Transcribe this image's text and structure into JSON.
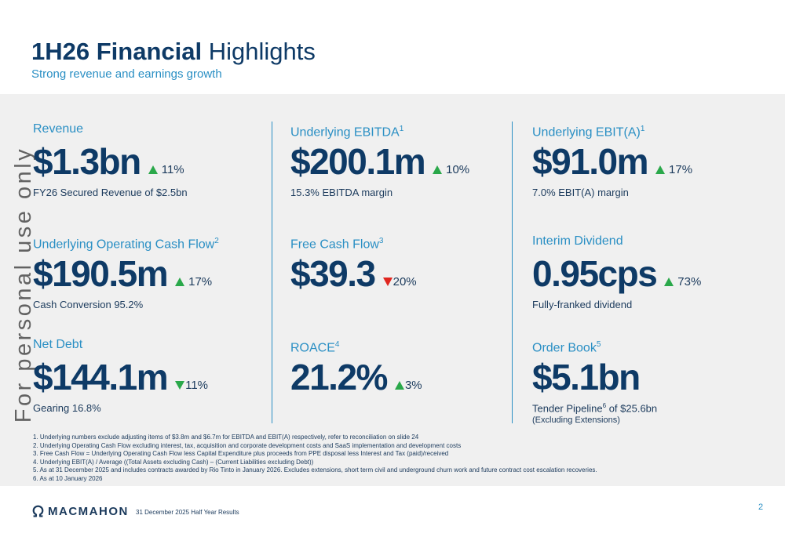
{
  "header": {
    "title_bold": "1H26 Financial",
    "title_light": "Highlights",
    "subtitle": "Strong revenue and earnings growth"
  },
  "watermark": "For personal use only",
  "metrics": [
    {
      "label": "Revenue",
      "sup": "",
      "value": "$1.3bn",
      "change": "11%",
      "direction": "up",
      "note": "FY26 Secured Revenue of $2.5bn"
    },
    {
      "label": "Underlying EBITDA",
      "sup": "1",
      "value": "$200.1m",
      "change": "10%",
      "direction": "up",
      "note": "15.3% EBITDA margin"
    },
    {
      "label": "Underlying EBIT(A)",
      "sup": "1",
      "value": "$91.0m",
      "change": "17%",
      "direction": "up",
      "note": "7.0% EBIT(A) margin"
    },
    {
      "label": "Underlying Operating Cash Flow",
      "sup": "2",
      "value": "$190.5m",
      "change": "17%",
      "direction": "up",
      "note": "Cash Conversion 95.2%"
    },
    {
      "label": "Free Cash Flow",
      "sup": "3",
      "value": "$39.3",
      "change": "20%",
      "direction": "down",
      "note": ""
    },
    {
      "label": "Interim Dividend",
      "sup": "",
      "value": "0.95cps",
      "change": "73%",
      "direction": "up",
      "note": "Fully-franked dividend"
    },
    {
      "label": "Net Debt",
      "sup": "",
      "value": "$144.1m",
      "change": "11%",
      "direction": "down-green",
      "note": "Gearing 16.8%"
    },
    {
      "label": "ROACE",
      "sup": "4",
      "value": "21.2%",
      "change": "3%",
      "direction": "up",
      "note": ""
    },
    {
      "label": "Order Book",
      "sup": "5",
      "value": "$5.1bn",
      "change": "",
      "direction": "",
      "note_pre": "Tender Pipeline",
      "note_sup": "6",
      "note_post": " of $25.6bn",
      "subnote": "(Excluding Extensions)"
    }
  ],
  "footnotes": [
    "1. Underlying numbers exclude adjusting items of $3.8m and $6.7m for EBITDA and EBIT(A) respectively, refer to reconciliation on slide 24",
    "2. Underlying Operating Cash Flow excluding interest, tax, acquisition and corporate development costs and SaaS implementation and development costs",
    "3. Free Cash Flow = Underlying Operating Cash Flow less Capital Expenditure plus proceeds from PPE disposal less Interest and Tax (paid)/received",
    "4. Underlying EBIT(A) / Average ((Total Assets excluding Cash) – (Current Liabilities excluding Debt))",
    "5. As at 31 December 2025 and includes contracts awarded by Rio Tinto in January 2026. Excludes extensions, short term civil and underground churn work and future contract cost escalation recoveries.",
    "6. As at 10 January 2026"
  ],
  "footer": {
    "logo_text": "MACMAHON",
    "report_date": "31 December 2025 Half Year Results",
    "page_number": "2"
  },
  "colors": {
    "navy": "#0e3a66",
    "accent_blue": "#2a8fc4",
    "up_green": "#2aa84a",
    "down_red": "#e0261f",
    "panel_grey": "#f0f0f0"
  }
}
